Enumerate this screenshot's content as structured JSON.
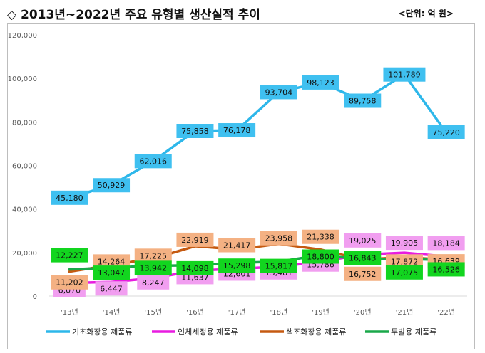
{
  "header": {
    "title": "◇ 2013년~2022년 주요 유형별 생산실적 추이",
    "unit": "<단위: 억 원>"
  },
  "chart_data": {
    "type": "line",
    "title": "◇ 2013년~2022년 주요 유형별 생산실적 추이",
    "unit_label": "<단위: 억 원>",
    "xlabel": "",
    "ylabel": "",
    "ylim": [
      0,
      120000
    ],
    "yticks": [
      0,
      20000,
      40000,
      60000,
      80000,
      100000,
      120000
    ],
    "ytick_labels": [
      "0",
      "20,000",
      "40,000",
      "60,000",
      "80,000",
      "100,000",
      "120,000"
    ],
    "categories": [
      "'13년",
      "'14년",
      "'15년",
      "'16년",
      "'17년",
      "'18년",
      "'19년",
      "'20년",
      "'21년",
      "'22년"
    ],
    "grid": false,
    "legend_position": "bottom",
    "series": [
      {
        "name": "기초화장용 제품류",
        "color": "#2db7ea",
        "label_bg": "#3fc0f0",
        "values": [
          45180,
          50929,
          62016,
          75858,
          76178,
          93704,
          98123,
          89758,
          101789,
          75220
        ],
        "labels": [
          "45,180",
          "50,929",
          "62,016",
          "75,858",
          "76,178",
          "93,704",
          "98,123",
          "89,758",
          "101,789",
          "75,220"
        ]
      },
      {
        "name": "인체세정용 제품류",
        "color": "#e81ce0",
        "label_bg": "#f19ef0",
        "values": [
          6070,
          6447,
          8247,
          11637,
          12601,
          13481,
          15786,
          19025,
          19905,
          18184
        ],
        "labels": [
          "6,070",
          "6,447",
          "8,247",
          "11,637",
          "12,601",
          "13,481",
          "15,786",
          "19,025",
          "19,905",
          "18,184"
        ]
      },
      {
        "name": "색조화장용 제품류",
        "color": "#c55a11",
        "label_bg": "#f4b183",
        "values": [
          11202,
          14264,
          17225,
          22919,
          21417,
          23958,
          21338,
          16752,
          17872,
          16639
        ],
        "labels": [
          "11,202",
          "14,264",
          "17,225",
          "22,919",
          "21,417",
          "23,958",
          "21,338",
          "16,752",
          "17,872",
          "16,639"
        ]
      },
      {
        "name": "두발용 제품류",
        "color": "#1aa84a",
        "label_bg": "#12d51f",
        "values": [
          12227,
          13047,
          13942,
          14098,
          15298,
          15817,
          18800,
          16843,
          17075,
          16526
        ],
        "labels": [
          "12,227",
          "13,047",
          "13,942",
          "14,098",
          "15,298",
          "15,817",
          "18,800",
          "16,843",
          "17,075",
          "16,526"
        ]
      }
    ]
  }
}
